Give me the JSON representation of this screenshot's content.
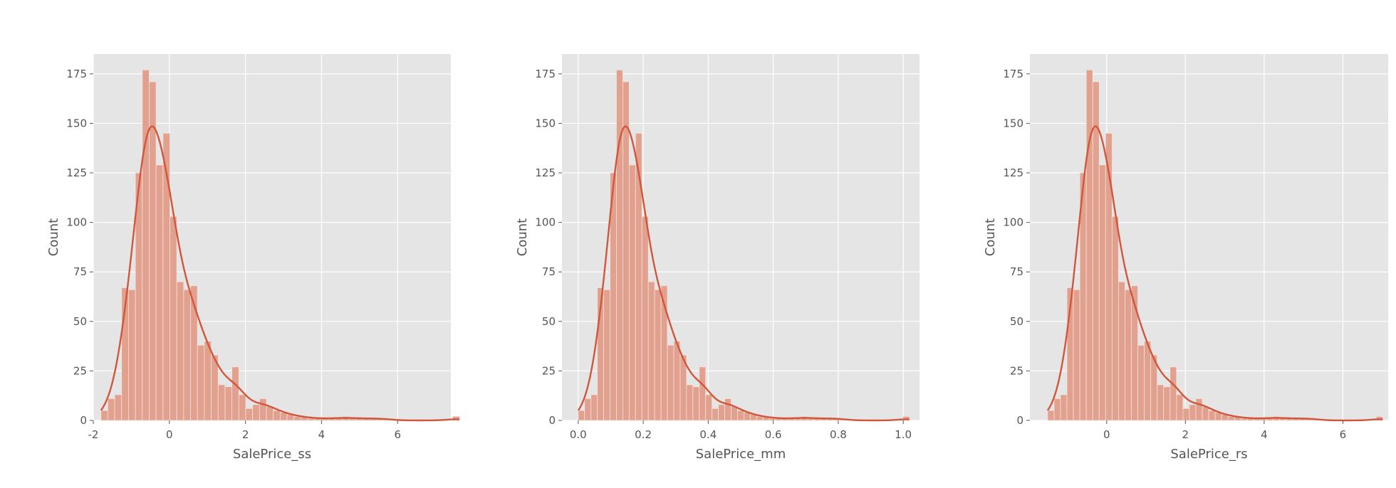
{
  "chart_data": [
    {
      "type": "bar",
      "subtype": "histogram-with-kde",
      "xlabel": "SalePrice_ss",
      "ylabel": "Count",
      "xlim": [
        -2.0,
        7.4
      ],
      "ylim": [
        0,
        185
      ],
      "xticks": [
        -2,
        0,
        2,
        4,
        6
      ],
      "xtick_labels": [
        "-2",
        "0",
        "2",
        "4",
        "6"
      ],
      "yticks": [
        0,
        25,
        50,
        75,
        100,
        125,
        150,
        175
      ],
      "ytick_labels": [
        "0",
        "25",
        "50",
        "75",
        "100",
        "125",
        "150",
        "175"
      ],
      "grid": true,
      "bin_start": -1.8,
      "bin_width": 0.1813,
      "counts": [
        5,
        11,
        13,
        67,
        66,
        125,
        177,
        171,
        129,
        145,
        103,
        70,
        66,
        68,
        38,
        40,
        33,
        18,
        17,
        27,
        13,
        6,
        8,
        11,
        7,
        5,
        4,
        3,
        2,
        2,
        1,
        1,
        1,
        1,
        1,
        2,
        1,
        1,
        1,
        1,
        1,
        1,
        0,
        0,
        0,
        0,
        0,
        0,
        0,
        0,
        0,
        2
      ]
    },
    {
      "type": "bar",
      "subtype": "histogram-with-kde",
      "xlabel": "SalePrice_mm",
      "ylabel": "Count",
      "xlim": [
        -0.05,
        1.05
      ],
      "ylim": [
        0,
        185
      ],
      "xticks": [
        0.0,
        0.2,
        0.4,
        0.6,
        0.8,
        1.0
      ],
      "xtick_labels": [
        "0.0",
        "0.2",
        "0.4",
        "0.6",
        "0.8",
        "1.0"
      ],
      "yticks": [
        0,
        25,
        50,
        75,
        100,
        125,
        150,
        175
      ],
      "ytick_labels": [
        "0",
        "25",
        "50",
        "75",
        "100",
        "125",
        "150",
        "175"
      ],
      "grid": true,
      "bin_start": 0.0,
      "bin_width": 0.0196,
      "counts": [
        5,
        11,
        13,
        67,
        66,
        125,
        177,
        171,
        129,
        145,
        103,
        70,
        66,
        68,
        38,
        40,
        33,
        18,
        17,
        27,
        13,
        6,
        8,
        11,
        7,
        5,
        4,
        3,
        2,
        2,
        1,
        1,
        1,
        1,
        1,
        2,
        1,
        1,
        1,
        1,
        1,
        1,
        0,
        0,
        0,
        0,
        0,
        0,
        0,
        0,
        0,
        2
      ]
    },
    {
      "type": "bar",
      "subtype": "histogram-with-kde",
      "xlabel": "SalePrice_rs",
      "ylabel": "Count",
      "xlim": [
        -1.95,
        7.15
      ],
      "ylim": [
        0,
        185
      ],
      "xticks": [
        0,
        2,
        4,
        6
      ],
      "xtick_labels": [
        "0",
        "2",
        "4",
        "6"
      ],
      "yticks": [
        0,
        25,
        50,
        75,
        100,
        125,
        150,
        175
      ],
      "ytick_labels": [
        "0",
        "25",
        "50",
        "75",
        "100",
        "125",
        "150",
        "175"
      ],
      "grid": true,
      "bin_start": -1.5,
      "bin_width": 0.1637,
      "counts": [
        5,
        11,
        13,
        67,
        66,
        125,
        177,
        171,
        129,
        145,
        103,
        70,
        66,
        68,
        38,
        40,
        33,
        18,
        17,
        27,
        13,
        6,
        8,
        11,
        7,
        5,
        4,
        3,
        2,
        2,
        1,
        1,
        1,
        1,
        1,
        2,
        1,
        1,
        1,
        1,
        1,
        1,
        0,
        0,
        0,
        0,
        0,
        0,
        0,
        0,
        0,
        2
      ]
    }
  ],
  "colors": {
    "plot_background": "#e5e5e5",
    "grid": "#ffffff",
    "bar_fill": "#e2a08e",
    "bar_edge": "#f3e3dc",
    "kde_line": "#d0563c",
    "text": "#555555"
  }
}
